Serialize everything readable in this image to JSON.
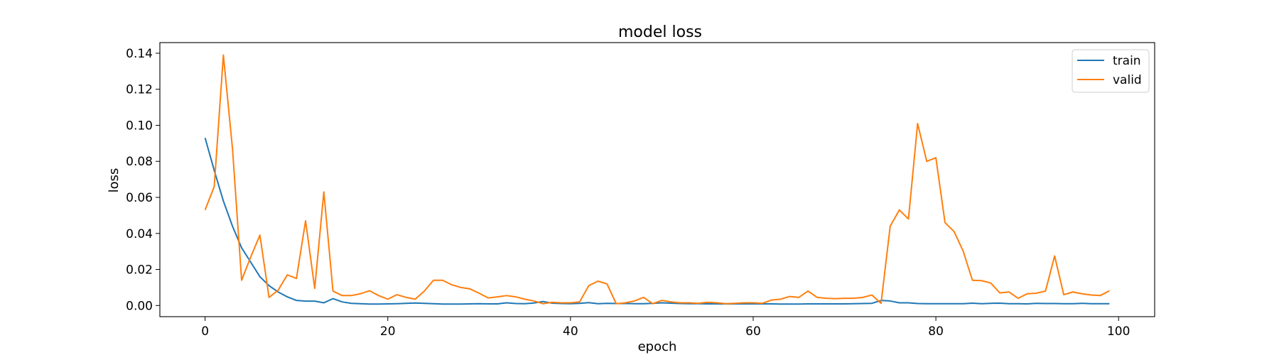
{
  "chart_data": {
    "type": "line",
    "title": "model loss",
    "xlabel": "epoch",
    "ylabel": "loss",
    "xlim": [
      -4.95,
      103.95
    ],
    "ylim": [
      -0.0062,
      0.1459
    ],
    "xticks": [
      0,
      20,
      40,
      60,
      80,
      100
    ],
    "xtick_labels": [
      "0",
      "20",
      "40",
      "60",
      "80",
      "100"
    ],
    "yticks": [
      0.0,
      0.02,
      0.04,
      0.06,
      0.08,
      0.1,
      0.12,
      0.14
    ],
    "ytick_labels": [
      "0.00",
      "0.02",
      "0.04",
      "0.06",
      "0.08",
      "0.10",
      "0.12",
      "0.14"
    ],
    "grid": false,
    "legend_position": "top-right",
    "series": [
      {
        "name": "train",
        "color": "#1f77b4",
        "values": [
          0.093,
          0.075,
          0.058,
          0.044,
          0.032,
          0.024,
          0.016,
          0.011,
          0.0075,
          0.0048,
          0.0028,
          0.0024,
          0.0024,
          0.0015,
          0.0038,
          0.002,
          0.0012,
          0.001,
          0.0008,
          0.0008,
          0.0009,
          0.001,
          0.0012,
          0.0014,
          0.0012,
          0.001,
          0.0008,
          0.0008,
          0.0008,
          0.0009,
          0.001,
          0.0009,
          0.0009,
          0.0015,
          0.0011,
          0.001,
          0.0014,
          0.0022,
          0.0013,
          0.0011,
          0.001,
          0.0012,
          0.0016,
          0.001,
          0.0012,
          0.0011,
          0.0011,
          0.001,
          0.001,
          0.0012,
          0.0015,
          0.0013,
          0.0011,
          0.001,
          0.001,
          0.0009,
          0.0009,
          0.0009,
          0.0009,
          0.0009,
          0.0009,
          0.0009,
          0.0009,
          0.0008,
          0.0008,
          0.0008,
          0.0009,
          0.0009,
          0.0009,
          0.0009,
          0.0009,
          0.001,
          0.0011,
          0.0012,
          0.0028,
          0.0025,
          0.0015,
          0.0015,
          0.0011,
          0.001,
          0.001,
          0.001,
          0.001,
          0.001,
          0.0013,
          0.001,
          0.0012,
          0.0013,
          0.001,
          0.001,
          0.0009,
          0.0012,
          0.0011,
          0.0011,
          0.001,
          0.001,
          0.0012,
          0.001,
          0.001,
          0.001
        ]
      },
      {
        "name": "valid",
        "color": "#ff7f0e",
        "values": [
          0.053,
          0.066,
          0.139,
          0.087,
          0.014,
          0.027,
          0.039,
          0.0045,
          0.0085,
          0.017,
          0.015,
          0.047,
          0.0095,
          0.063,
          0.008,
          0.0055,
          0.0055,
          0.0065,
          0.0082,
          0.0055,
          0.0035,
          0.006,
          0.0045,
          0.0035,
          0.008,
          0.014,
          0.014,
          0.0115,
          0.01,
          0.0092,
          0.0068,
          0.0042,
          0.0048,
          0.0055,
          0.0048,
          0.0035,
          0.0025,
          0.001,
          0.0018,
          0.0015,
          0.0015,
          0.002,
          0.011,
          0.0135,
          0.012,
          0.001,
          0.0015,
          0.0025,
          0.0045,
          0.001,
          0.0028,
          0.002,
          0.0015,
          0.0015,
          0.0012,
          0.0018,
          0.0015,
          0.001,
          0.0012,
          0.0015,
          0.0015,
          0.0012,
          0.003,
          0.0035,
          0.005,
          0.0045,
          0.008,
          0.0045,
          0.004,
          0.0038,
          0.004,
          0.004,
          0.0045,
          0.0058,
          0.0012,
          0.044,
          0.053,
          0.048,
          0.101,
          0.08,
          0.082,
          0.046,
          0.041,
          0.03,
          0.014,
          0.0138,
          0.0125,
          0.007,
          0.0075,
          0.004,
          0.0065,
          0.0068,
          0.008,
          0.0275,
          0.006,
          0.0075,
          0.0065,
          0.0058,
          0.0055,
          0.0082
        ]
      }
    ]
  }
}
